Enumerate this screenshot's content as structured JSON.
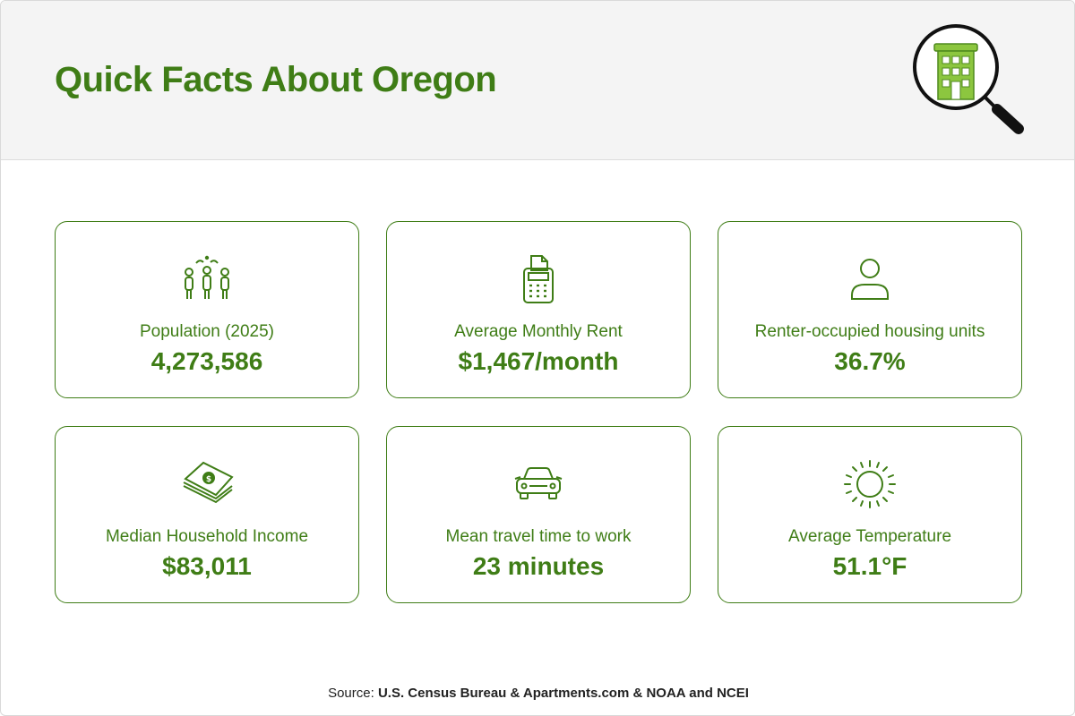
{
  "header": {
    "title": "Quick Facts About Oregon"
  },
  "facts": [
    {
      "icon": "people-group-icon",
      "label": "Population (2025)",
      "value": "4,273,586"
    },
    {
      "icon": "rent-receipt-icon",
      "label": "Average Monthly Rent",
      "value": "$1,467/month"
    },
    {
      "icon": "person-icon",
      "label": "Renter-occupied housing units",
      "value": "36.7%"
    },
    {
      "icon": "money-stack-icon",
      "label": "Median Household Income",
      "value": "$83,011"
    },
    {
      "icon": "car-icon",
      "label": "Mean travel time to work",
      "value": "23 minutes"
    },
    {
      "icon": "sun-icon",
      "label": "Average Temperature",
      "value": "51.1°F"
    }
  ],
  "footer": {
    "source_prefix": "Source: ",
    "source_text": "U.S. Census Bureau & Apartments.com & NOAA and NCEI"
  },
  "colors": {
    "accent": "#3f7d16",
    "icon_green": "#8cc63f",
    "header_bg": "#f4f4f4"
  }
}
